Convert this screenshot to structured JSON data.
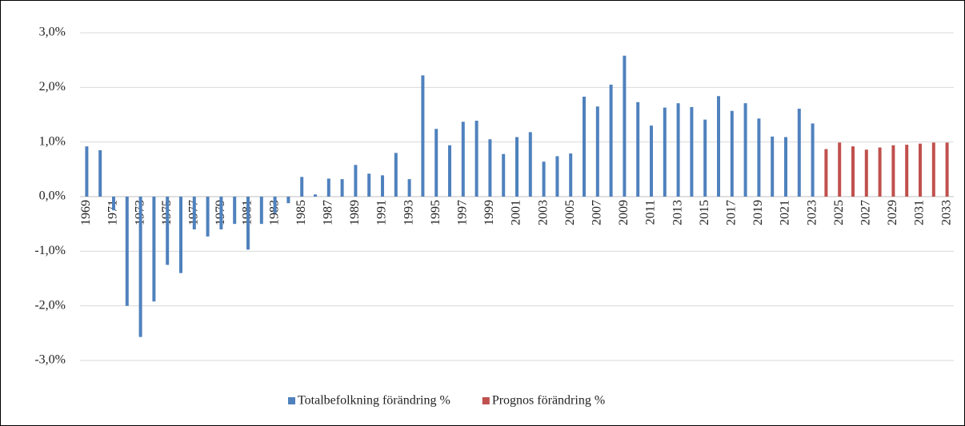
{
  "chart_data": {
    "type": "bar",
    "categories": [
      "1969",
      null,
      "1971",
      null,
      "1973",
      null,
      "1975",
      null,
      "1977",
      null,
      "1979",
      null,
      "1981",
      null,
      "1983",
      null,
      "1985",
      null,
      "1987",
      null,
      "1989",
      null,
      "1991",
      null,
      "1993",
      null,
      "1995",
      null,
      "1997",
      null,
      "1999",
      null,
      "2001",
      null,
      "2003",
      null,
      "2005",
      null,
      "2007",
      null,
      "2009",
      null,
      "2011",
      null,
      "2013",
      null,
      "2015",
      null,
      "2017",
      null,
      "2019",
      null,
      "2021",
      null,
      "2023",
      null,
      "2025",
      null,
      "2027",
      null,
      "2029",
      null,
      "2031",
      null,
      "2033"
    ],
    "series": [
      {
        "name": "Totalbefolkning förändring %",
        "color": "#4f81bd",
        "values": [
          0.92,
          0.85,
          -0.25,
          -2.0,
          -2.57,
          -1.92,
          -1.25,
          -1.4,
          -0.6,
          -0.73,
          -0.6,
          -0.5,
          -0.97,
          -0.5,
          -0.3,
          -0.12,
          0.36,
          0.04,
          0.33,
          0.32,
          0.58,
          0.42,
          0.39,
          0.8,
          0.32,
          2.22,
          1.24,
          0.94,
          1.37,
          1.39,
          1.05,
          0.78,
          1.09,
          1.18,
          0.64,
          0.74,
          0.79,
          1.83,
          1.65,
          2.05,
          2.58,
          1.73,
          1.3,
          1.63,
          1.71,
          1.64,
          1.41,
          1.84,
          1.57,
          1.71,
          1.43,
          1.1,
          1.09,
          1.61,
          1.34,
          null,
          null,
          null,
          null,
          null,
          null,
          null,
          null,
          null,
          null
        ]
      },
      {
        "name": "Prognos förändring %",
        "color": "#c0504d",
        "values": [
          null,
          null,
          null,
          null,
          null,
          null,
          null,
          null,
          null,
          null,
          null,
          null,
          null,
          null,
          null,
          null,
          null,
          null,
          null,
          null,
          null,
          null,
          null,
          null,
          null,
          null,
          null,
          null,
          null,
          null,
          null,
          null,
          null,
          null,
          null,
          null,
          null,
          null,
          null,
          null,
          null,
          null,
          null,
          null,
          null,
          null,
          null,
          null,
          null,
          null,
          null,
          null,
          null,
          null,
          null,
          0.87,
          0.99,
          0.92,
          0.86,
          0.9,
          0.94,
          0.95,
          0.97,
          0.99,
          0.99
        ]
      }
    ],
    "ylim": [
      -3,
      3
    ],
    "yticks": [
      {
        "value": 3,
        "label": "3,0%"
      },
      {
        "value": 2,
        "label": "2,0%"
      },
      {
        "value": 1,
        "label": "1,0%"
      },
      {
        "value": 0,
        "label": "0,0%"
      },
      {
        "value": -1,
        "label": "-1,0%"
      },
      {
        "value": -2,
        "label": "-2,0%"
      },
      {
        "value": -3,
        "label": "-3,0%"
      }
    ],
    "grid": true,
    "legend": "bottom"
  }
}
